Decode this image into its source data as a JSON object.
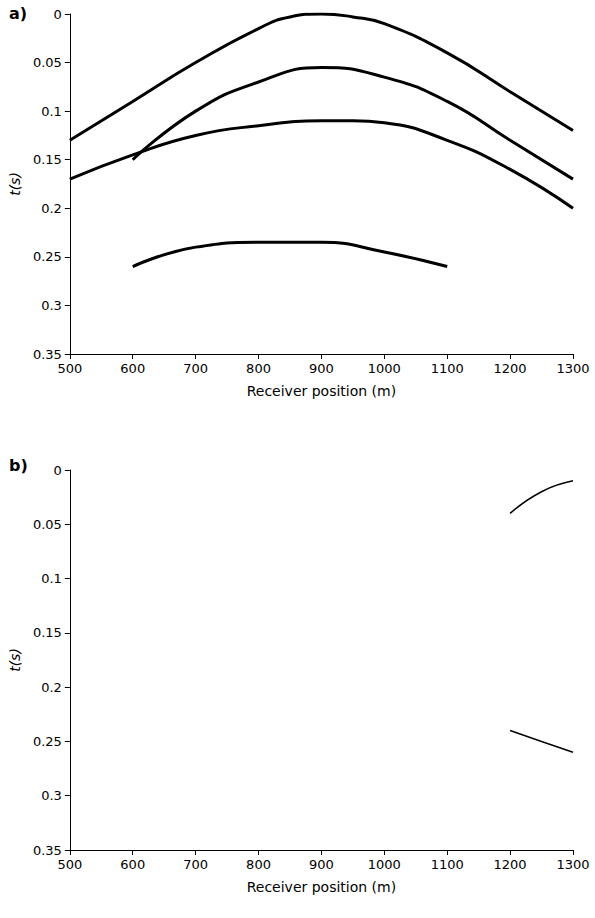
{
  "chart_data": [
    {
      "type": "line",
      "title": "a)",
      "x_label": "Receiver position (m)",
      "y_label": "t(s)",
      "xlim": [
        500,
        1300
      ],
      "xticks": [
        500,
        600,
        700,
        800,
        900,
        1000,
        1100,
        1200,
        1300
      ],
      "ylim": [
        0,
        0.35
      ],
      "yticks": [
        0,
        0.05,
        0.1,
        0.15,
        0.2,
        0.25,
        0.3,
        0.35
      ],
      "grid": false,
      "line_style": "solid",
      "series": [
        {
          "color": "#000000",
          "x": [
            500,
            600,
            700,
            800,
            850,
            900,
            950,
            1000,
            1100,
            1200,
            1300
          ],
          "values": [
            0.13,
            0.09,
            0.05,
            0.015,
            0.003,
            0.0,
            0.003,
            0.01,
            0.04,
            0.08,
            0.12
          ]
        },
        {
          "color": "#000000",
          "x": [
            600,
            700,
            800,
            900,
            1000,
            1100,
            1200,
            1300
          ],
          "values": [
            0.15,
            0.1,
            0.07,
            0.055,
            0.065,
            0.09,
            0.13,
            0.17
          ]
        },
        {
          "color": "#000000",
          "x": [
            500,
            600,
            700,
            800,
            900,
            950,
            1000,
            1100,
            1200,
            1300
          ],
          "values": [
            0.17,
            0.145,
            0.125,
            0.115,
            0.11,
            0.11,
            0.112,
            0.13,
            0.16,
            0.2
          ]
        },
        {
          "color": "#000000",
          "x": [
            600,
            700,
            800,
            900,
            1000,
            1100
          ],
          "values": [
            0.26,
            0.24,
            0.235,
            0.235,
            0.245,
            0.26
          ]
        }
      ]
    },
    {
      "type": "line",
      "title": "b)",
      "x_label": "Receiver position (m)",
      "y_label": "t(s)",
      "xlim": [
        500,
        1300
      ],
      "xticks": [
        500,
        600,
        700,
        800,
        900,
        1000,
        1100,
        1200,
        1300
      ],
      "ylim": [
        0,
        0.35
      ],
      "yticks": [
        0,
        0.05,
        0.1,
        0.15,
        0.2,
        0.25,
        0.3,
        0.35
      ],
      "grid": false,
      "line_style": "solid",
      "series": [
        {
          "color": "#000000",
          "x": [
            1200,
            1250,
            1300
          ],
          "values": [
            0.04,
            0.02,
            0.01
          ]
        },
        {
          "color": "#000000",
          "x": [
            1200,
            1250,
            1300
          ],
          "values": [
            0.24,
            0.25,
            0.26
          ]
        }
      ]
    }
  ]
}
